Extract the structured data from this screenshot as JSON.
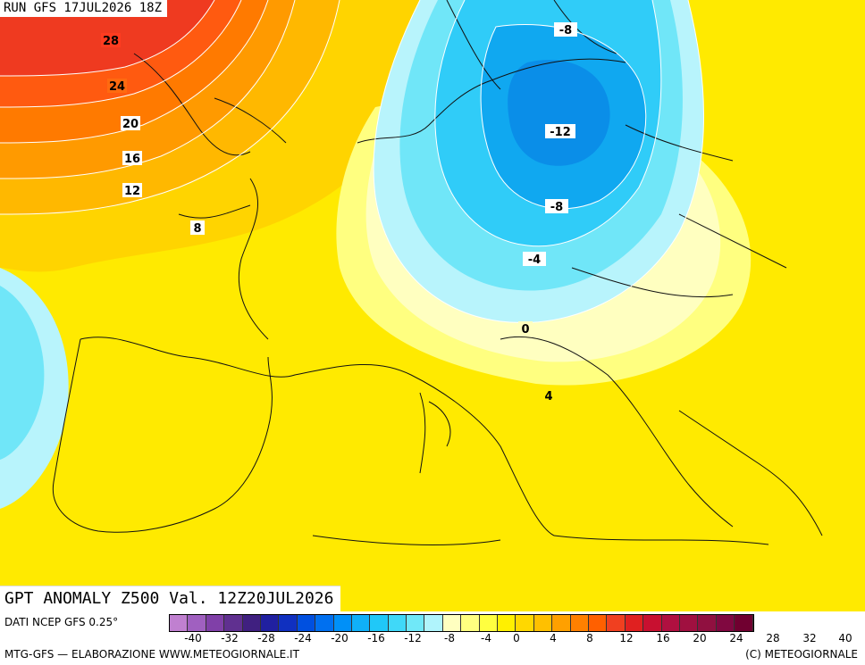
{
  "header": {
    "run": "RUN GFS 17JUL2026 18Z",
    "title": "GPT ANOMALY Z500 Val. 12Z20JUL2026"
  },
  "footer": {
    "source": "DATI NCEP GFS 0.25°",
    "credit": "MTG-GFS — ELABORAZIONE WWW.METEOGIORNALE.IT",
    "copyright": "(C) METEOGIORNALE"
  },
  "legend": {
    "colors": [
      "#c080d0",
      "#a060c0",
      "#8040a8",
      "#603090",
      "#402080",
      "#2020a0",
      "#1030c0",
      "#0050e0",
      "#0070f0",
      "#0090f8",
      "#10b0f8",
      "#20c8f8",
      "#40d8f8",
      "#70e8f8",
      "#b0f4fc",
      "#ffffc0",
      "#ffff80",
      "#ffff40",
      "#fff000",
      "#ffd800",
      "#ffc000",
      "#ffa000",
      "#ff8000",
      "#ff6000",
      "#f04020",
      "#e02020",
      "#c81030",
      "#b01040",
      "#a01040",
      "#901040",
      "#800840",
      "#700030"
    ],
    "ticks": [
      "-40",
      "-32",
      "-28",
      "-24",
      "-20",
      "-16",
      "-12",
      "-8",
      "-4",
      "0",
      "4",
      "8",
      "12",
      "16",
      "20",
      "24",
      "28",
      "32",
      "40"
    ]
  },
  "contour_labels": [
    {
      "text": "28"
    },
    {
      "text": "24"
    },
    {
      "text": "20"
    },
    {
      "text": "16"
    },
    {
      "text": "12"
    },
    {
      "text": "8"
    },
    {
      "text": "-8"
    },
    {
      "text": "-12"
    },
    {
      "text": "-8"
    },
    {
      "text": "-4"
    },
    {
      "text": "0"
    },
    {
      "text": "4"
    }
  ]
}
